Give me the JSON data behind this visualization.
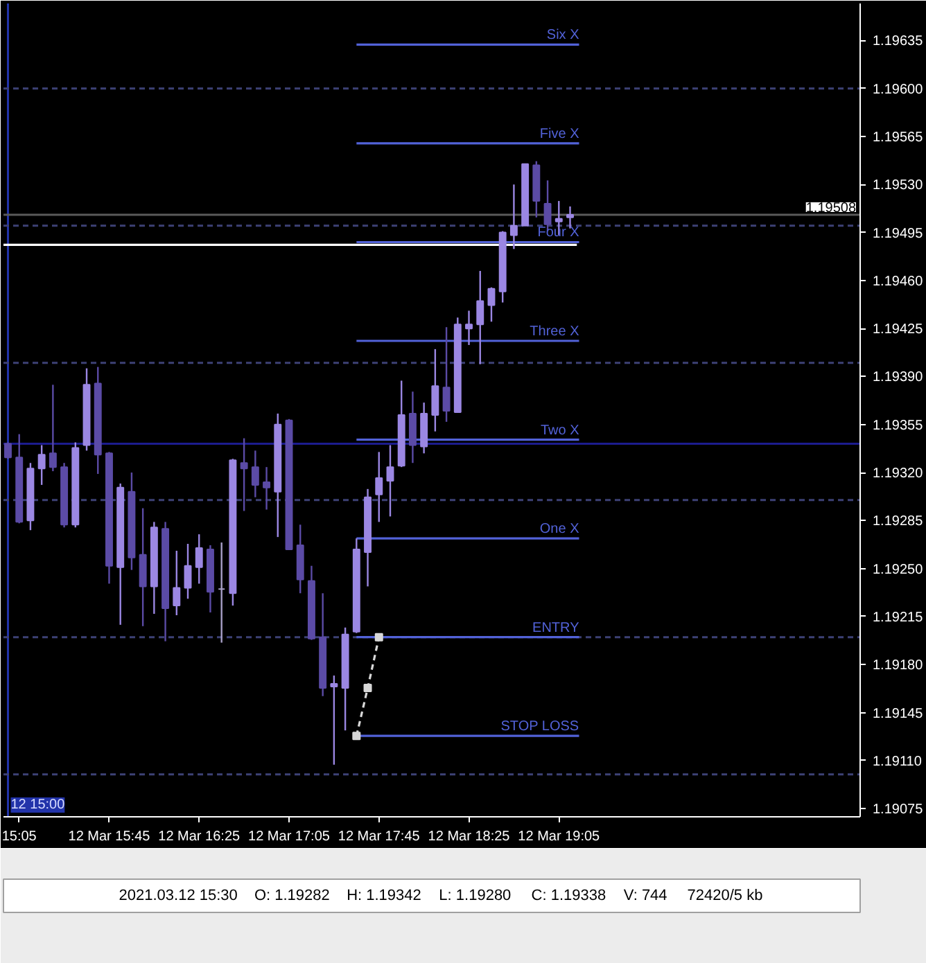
{
  "chart_data": {
    "type": "candlestick",
    "x": [
      "2021-03-12T15:00",
      "2021-03-12T15:05",
      "2021-03-12T15:10",
      "2021-03-12T15:15",
      "2021-03-12T15:20",
      "2021-03-12T15:25",
      "2021-03-12T15:30",
      "2021-03-12T15:35",
      "2021-03-12T15:40",
      "2021-03-12T15:45",
      "2021-03-12T15:50",
      "2021-03-12T15:55",
      "2021-03-12T16:00",
      "2021-03-12T16:05",
      "2021-03-12T16:10",
      "2021-03-12T16:15",
      "2021-03-12T16:20",
      "2021-03-12T16:25",
      "2021-03-12T16:30",
      "2021-03-12T16:35",
      "2021-03-12T16:40",
      "2021-03-12T16:45",
      "2021-03-12T16:50",
      "2021-03-12T16:55",
      "2021-03-12T17:00",
      "2021-03-12T17:05",
      "2021-03-12T17:10",
      "2021-03-12T17:15",
      "2021-03-12T17:20",
      "2021-03-12T17:25",
      "2021-03-12T17:30",
      "2021-03-12T17:35",
      "2021-03-12T17:40",
      "2021-03-12T17:45",
      "2021-03-12T17:50",
      "2021-03-12T17:55",
      "2021-03-12T18:00",
      "2021-03-12T18:05",
      "2021-03-12T18:10",
      "2021-03-12T18:15",
      "2021-03-12T18:20",
      "2021-03-12T18:25",
      "2021-03-12T18:30",
      "2021-03-12T18:35",
      "2021-03-12T18:40",
      "2021-03-12T18:45",
      "2021-03-12T18:50",
      "2021-03-12T18:55",
      "2021-03-12T19:00",
      "2021-03-12T19:05",
      "2021-03-12T19:10"
    ],
    "ohlc": [
      [
        1.19341,
        1.19342,
        1.1933,
        1.19331
      ],
      [
        1.19331,
        1.19348,
        1.19283,
        1.19284
      ],
      [
        1.19285,
        1.19327,
        1.19278,
        1.19323
      ],
      [
        1.19323,
        1.1934,
        1.19311,
        1.19333
      ],
      [
        1.19334,
        1.19384,
        1.19321,
        1.19324
      ],
      [
        1.19324,
        1.19327,
        1.1928,
        1.19282
      ],
      [
        1.19282,
        1.19342,
        1.1928,
        1.19338
      ],
      [
        1.1934,
        1.19396,
        1.19336,
        1.19384
      ],
      [
        1.19385,
        1.19397,
        1.19319,
        1.19333
      ],
      [
        1.19334,
        1.19335,
        1.19239,
        1.19252
      ],
      [
        1.19251,
        1.19312,
        1.19209,
        1.19309
      ],
      [
        1.19306,
        1.1932,
        1.19249,
        1.19258
      ],
      [
        1.1926,
        1.19294,
        1.19208,
        1.19237
      ],
      [
        1.19237,
        1.19284,
        1.19217,
        1.1928
      ],
      [
        1.19279,
        1.19284,
        1.19197,
        1.19221
      ],
      [
        1.19223,
        1.19263,
        1.19216,
        1.19236
      ],
      [
        1.19236,
        1.19268,
        1.19228,
        1.19252
      ],
      [
        1.19251,
        1.19275,
        1.19239,
        1.19265
      ],
      [
        1.19264,
        1.19267,
        1.19218,
        1.19233
      ],
      [
        1.19235,
        1.19269,
        1.19196,
        1.19235
      ],
      [
        1.19232,
        1.1933,
        1.19223,
        1.19329
      ],
      [
        1.19327,
        1.19345,
        1.19292,
        1.19323
      ],
      [
        1.19324,
        1.19336,
        1.19302,
        1.19311
      ],
      [
        1.19313,
        1.19324,
        1.19293,
        1.19309
      ],
      [
        1.19306,
        1.19363,
        1.19273,
        1.19355
      ],
      [
        1.19358,
        1.19359,
        1.19264,
        1.19264
      ],
      [
        1.19267,
        1.19282,
        1.19232,
        1.19242
      ],
      [
        1.19241,
        1.19252,
        1.19198,
        1.19199
      ],
      [
        1.192,
        1.19232,
        1.19157,
        1.19163
      ],
      [
        1.19164,
        1.19172,
        1.19107,
        1.19166
      ],
      [
        1.19163,
        1.19207,
        1.19132,
        1.19202
      ],
      [
        1.19204,
        1.19272,
        1.19203,
        1.19264
      ],
      [
        1.19262,
        1.19308,
        1.19237,
        1.19302
      ],
      [
        1.19304,
        1.19335,
        1.19284,
        1.19316
      ],
      [
        1.19314,
        1.1934,
        1.19288,
        1.19324
      ],
      [
        1.19325,
        1.19387,
        1.19324,
        1.19362
      ],
      [
        1.19363,
        1.19379,
        1.19327,
        1.1934
      ],
      [
        1.19339,
        1.19371,
        1.19334,
        1.19363
      ],
      [
        1.19362,
        1.1941,
        1.1935,
        1.19383
      ],
      [
        1.19382,
        1.19426,
        1.19357,
        1.19365
      ],
      [
        1.19364,
        1.19433,
        1.19364,
        1.19428
      ],
      [
        1.19425,
        1.19438,
        1.19413,
        1.19428
      ],
      [
        1.19428,
        1.19467,
        1.19399,
        1.19445
      ],
      [
        1.19442,
        1.19455,
        1.1943,
        1.19454
      ],
      [
        1.19452,
        1.19496,
        1.19444,
        1.19495
      ],
      [
        1.19493,
        1.1953,
        1.19483,
        1.195
      ],
      [
        1.195,
        1.19545,
        1.195,
        1.19545
      ],
      [
        1.19544,
        1.19547,
        1.19506,
        1.19518
      ],
      [
        1.19516,
        1.19533,
        1.19496,
        1.19501
      ],
      [
        1.19503,
        1.19518,
        1.19493,
        1.19505
      ],
      [
        1.19506,
        1.19514,
        1.19498,
        1.19508
      ]
    ],
    "colors": [
      "#5b4ba6",
      "#5b4ba6",
      "#9b87e3",
      "#9b87e3",
      "#5b4ba6",
      "#5b4ba6",
      "#9b87e3",
      "#9b87e3",
      "#5b4ba6",
      "#5b4ba6",
      "#9b87e3",
      "#5b4ba6",
      "#5b4ba6",
      "#9b87e3",
      "#5b4ba6",
      "#9b87e3",
      "#9b87e3",
      "#9b87e3",
      "#5b4ba6",
      "#a8a0c8",
      "#9b87e3",
      "#5b4ba6",
      "#5b4ba6",
      "#5b4ba6",
      "#9b87e3",
      "#5b4ba6",
      "#5b4ba6",
      "#5b4ba6",
      "#5b4ba6",
      "#9b87e3",
      "#9b87e3",
      "#9b87e3",
      "#9b87e3",
      "#9b87e3",
      "#9b87e3",
      "#9b87e3",
      "#5b4ba6",
      "#9b87e3",
      "#9b87e3",
      "#5b4ba6",
      "#9b87e3",
      "#9b87e3",
      "#9b87e3",
      "#9b87e3",
      "#9b87e3",
      "#9b87e3",
      "#9b87e3",
      "#5b4ba6",
      "#5b4ba6",
      "#9b87e3",
      "#9b87e3"
    ],
    "xlim": [
      "2021-03-12T14:58",
      "2021-03-12T21:19"
    ],
    "ylim": [
      1.19069,
      1.19662
    ],
    "xticks": [
      {
        "value": "2021-03-12T15:05",
        "label": "15:05"
      },
      {
        "value": "2021-03-12T15:45",
        "label": "12 Mar 15:45"
      },
      {
        "value": "2021-03-12T16:25",
        "label": "12 Mar 16:25"
      },
      {
        "value": "2021-03-12T17:05",
        "label": "12 Mar 17:05"
      },
      {
        "value": "2021-03-12T17:45",
        "label": "12 Mar 17:45"
      },
      {
        "value": "2021-03-12T18:25",
        "label": "12 Mar 18:25"
      },
      {
        "value": "2021-03-12T19:05",
        "label": "12 Mar 19:05"
      }
    ],
    "yticks": [
      1.19075,
      {
        "value": 1.1911,
        "label": "1.19110"
      },
      1.19145,
      {
        "value": 1.1918,
        "label": "1.19180"
      },
      1.19215,
      {
        "value": 1.1925,
        "label": "1.19250"
      },
      1.19285,
      {
        "value": 1.1932,
        "label": "1.19320"
      },
      1.19355,
      {
        "value": 1.1939,
        "label": "1.19390"
      },
      1.19425,
      {
        "value": 1.1946,
        "label": "1.19460"
      },
      1.19495,
      {
        "value": 1.1953,
        "label": "1.19530"
      },
      1.19565,
      {
        "value": 1.196,
        "label": "1.19600"
      },
      1.19635
    ],
    "ref_lines": [
      {
        "axis": "x",
        "value": "2021-03-12T15:00",
        "label": "12 15:00",
        "color": "#2233aa"
      },
      {
        "axis": "y",
        "value": 1.196,
        "color": "#3d4175",
        "line_style": "dashed"
      },
      {
        "axis": "y",
        "value": 1.195,
        "color": "#3d4175",
        "line_style": "dashed"
      },
      {
        "axis": "y",
        "value": 1.194,
        "color": "#3d4175",
        "line_style": "dashed"
      },
      {
        "axis": "y",
        "value": 1.193,
        "color": "#3d4175",
        "line_style": "dashed"
      },
      {
        "axis": "y",
        "value": 1.192,
        "color": "#3d4175",
        "line_style": "dashed"
      },
      {
        "axis": "y",
        "value": 1.191,
        "color": "#3d4175",
        "line_style": "dashed"
      },
      {
        "axis": "y",
        "value": 1.19341,
        "color": "#1c1c8e"
      },
      {
        "axis": "y",
        "value": 1.19508,
        "label": "1.19508",
        "color": "#5a5a5a"
      }
    ],
    "series": [
      {
        "type": "line",
        "color": "#ffffff",
        "x": [
          "2021-03-12T14:58",
          "2021-03-12T19:13"
        ],
        "values": [
          1.19486,
          1.19486
        ]
      },
      {
        "type": "line",
        "name": "Six X",
        "color": "#5262d8",
        "x": [
          "2021-03-12T17:35",
          "2021-03-12T19:14"
        ],
        "values": [
          1.19632,
          1.19632
        ]
      },
      {
        "type": "line",
        "name": "Five X",
        "color": "#5262d8",
        "x": [
          "2021-03-12T17:35",
          "2021-03-12T19:14"
        ],
        "values": [
          1.1956,
          1.1956
        ]
      },
      {
        "type": "line",
        "name": "Four X",
        "color": "#5262d8",
        "x": [
          "2021-03-12T17:35",
          "2021-03-12T19:14"
        ],
        "values": [
          1.19488,
          1.19488
        ]
      },
      {
        "type": "line",
        "name": "Three X",
        "color": "#5262d8",
        "x": [
          "2021-03-12T17:35",
          "2021-03-12T19:14"
        ],
        "values": [
          1.19416,
          1.19416
        ]
      },
      {
        "type": "line",
        "name": "Two X",
        "color": "#5262d8",
        "x": [
          "2021-03-12T17:35",
          "2021-03-12T19:14"
        ],
        "values": [
          1.19344,
          1.19344
        ]
      },
      {
        "type": "line",
        "name": "One X",
        "color": "#5262d8",
        "x": [
          "2021-03-12T17:35",
          "2021-03-12T19:14"
        ],
        "values": [
          1.19272,
          1.19272
        ]
      },
      {
        "type": "line",
        "name": "ENTRY",
        "color": "#5262d8",
        "x": [
          "2021-03-12T17:35",
          "2021-03-12T19:14"
        ],
        "values": [
          1.192,
          1.192
        ]
      },
      {
        "type": "line",
        "name": "STOP LOSS",
        "color": "#5262d8",
        "x": [
          "2021-03-12T17:35",
          "2021-03-12T19:14"
        ],
        "values": [
          1.19128,
          1.19128
        ]
      },
      {
        "type": "line",
        "color": "#d8d8d8",
        "line_style": "dashed",
        "marker": "square",
        "x": [
          "2021-03-12T17:35",
          "2021-03-12T17:40",
          "2021-03-12T17:45"
        ],
        "values": [
          1.19128,
          1.19163,
          1.192
        ]
      }
    ],
    "annotations": [
      "2021.03.12 15:30",
      "O: 1.19282",
      "H: 1.19342",
      "L: 1.19280",
      "C: 1.19338",
      "V: 744",
      "72420/5 kb"
    ]
  }
}
